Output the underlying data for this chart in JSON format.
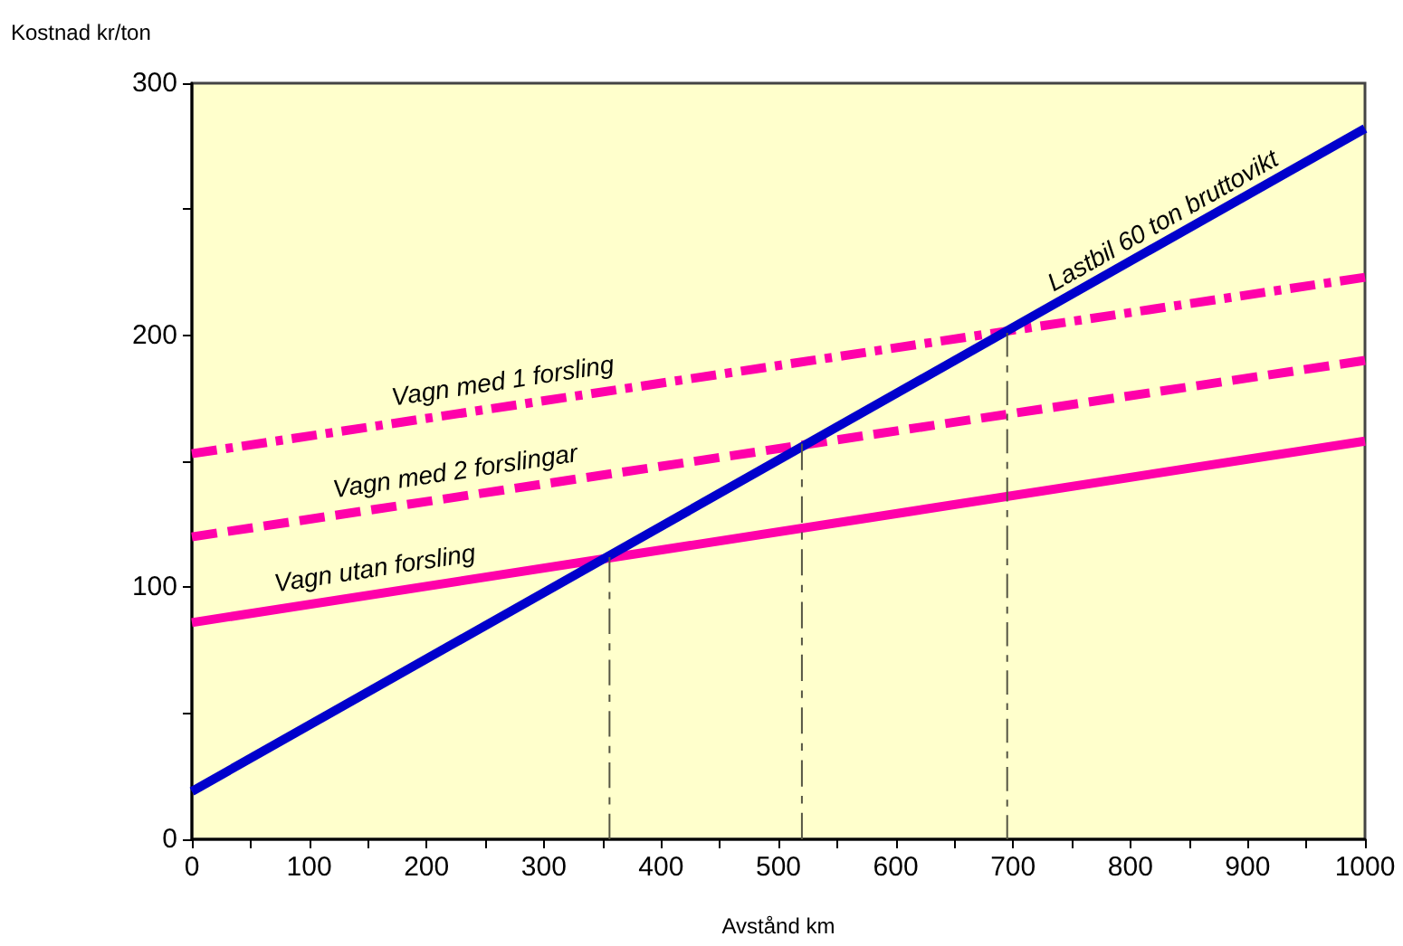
{
  "chart_data": {
    "type": "line",
    "xlabel": "Avstånd km",
    "ylabel": "Kostnad kr/ton",
    "marker": "none",
    "xlim": [
      0,
      1000
    ],
    "xticks": [
      0,
      {
        "value": 50,
        "label": null
      },
      100,
      {
        "value": 150,
        "label": null
      },
      200,
      {
        "value": 250,
        "label": null
      },
      300,
      {
        "value": 350,
        "label": null
      },
      400,
      {
        "value": 450,
        "label": null
      },
      500,
      {
        "value": 550,
        "label": null
      },
      600,
      {
        "value": 650,
        "label": null
      },
      700,
      {
        "value": 750,
        "label": null
      },
      800,
      {
        "value": 850,
        "label": null
      },
      900,
      {
        "value": 950,
        "label": null
      },
      1000
    ],
    "ylim": [
      0,
      300
    ],
    "yticks": [
      0,
      {
        "value": 50,
        "label": null
      },
      100,
      {
        "value": 150,
        "label": null
      },
      200,
      {
        "value": 250,
        "label": null
      },
      300
    ],
    "series": [
      {
        "name": "Vagn med 1 forsling",
        "color": "#ff00aa",
        "line_style": "dashdot",
        "x": [
          0,
          1000
        ],
        "values": [
          153,
          223
        ]
      },
      {
        "name": "Vagn med 2 forslingar",
        "color": "#ff00aa",
        "line_style": "dashed",
        "x": [
          0,
          1000
        ],
        "values": [
          120,
          190
        ]
      },
      {
        "name": "Vagn utan forsling",
        "color": "#ff00aa",
        "line_style": "solid",
        "x": [
          0,
          1000
        ],
        "values": [
          86,
          158
        ]
      },
      {
        "name": "Lastbil 60 ton bruttovikt",
        "color": "#0000cc",
        "line_style": "solid",
        "x": [
          0,
          1000
        ],
        "values": [
          19,
          282
        ]
      },
      {
        "color": "#555544",
        "line_style": "dashdot",
        "x": [
          356,
          356
        ],
        "values": [
          0,
          112
        ]
      },
      {
        "color": "#555544",
        "line_style": "dashdot",
        "x": [
          520,
          520
        ],
        "values": [
          0,
          157
        ]
      },
      {
        "color": "#555544",
        "line_style": "dashdot",
        "x": [
          695,
          695
        ],
        "values": [
          0,
          201
        ]
      }
    ]
  }
}
